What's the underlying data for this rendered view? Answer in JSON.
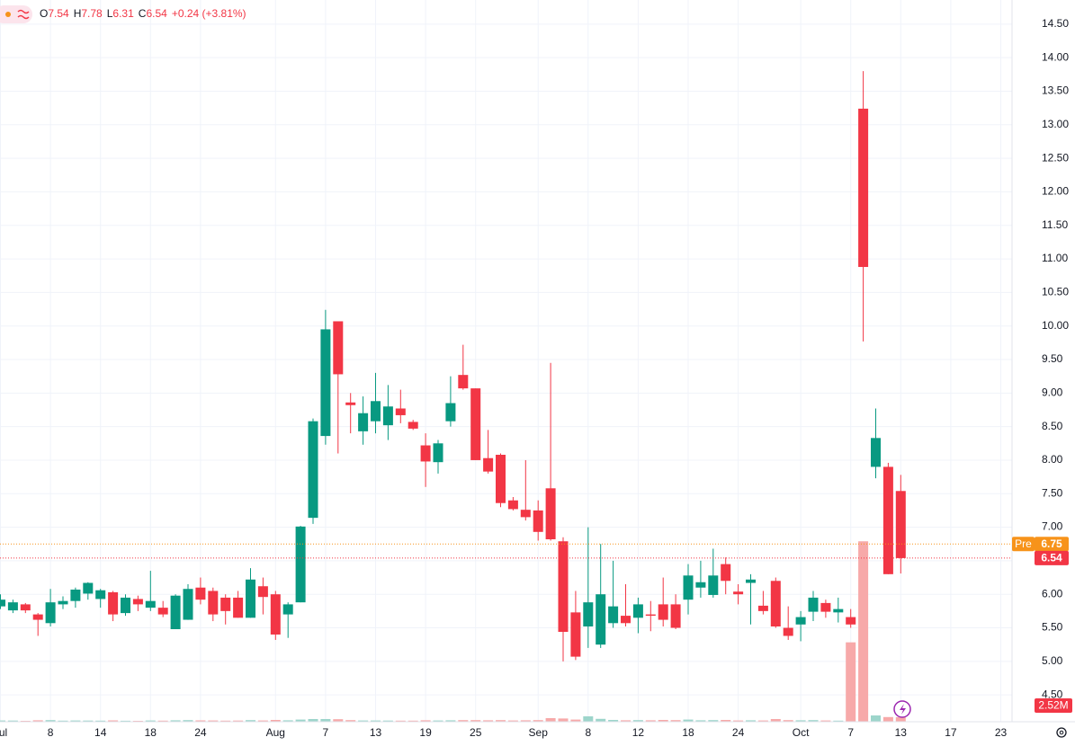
{
  "chart_data": {
    "type": "candlestick",
    "legend": {
      "items": [
        {
          "label": "O",
          "value": "7.54"
        },
        {
          "label": "H",
          "value": "7.78"
        },
        {
          "label": "L",
          "value": "6.31"
        },
        {
          "label": "C",
          "value": "6.54"
        }
      ],
      "change": "+0.24 (+3.81%)"
    },
    "categories": [
      "Jul",
      null,
      null,
      null,
      "8",
      null,
      null,
      null,
      "14",
      null,
      null,
      null,
      "18",
      null,
      null,
      null,
      "24",
      null,
      null,
      null,
      null,
      null,
      "Aug",
      null,
      null,
      null,
      "7",
      null,
      null,
      null,
      "13",
      null,
      null,
      null,
      "19",
      null,
      null,
      null,
      "25",
      null,
      null,
      null,
      null,
      "Sep",
      null,
      null,
      null,
      "8",
      null,
      null,
      null,
      "12",
      null,
      null,
      null,
      "18",
      null,
      null,
      null,
      "24",
      null,
      null,
      null,
      null,
      "Oct",
      null,
      null,
      null,
      "7",
      null,
      null,
      null,
      "13",
      null,
      null,
      null,
      "17",
      null,
      null,
      null,
      "23"
    ],
    "open": [
      5.82,
      5.76,
      5.85,
      5.7,
      5.57,
      5.85,
      5.9,
      6.01,
      5.93,
      6.03,
      5.72,
      5.93,
      5.8,
      5.8,
      5.48,
      5.62,
      6.1,
      6.05,
      5.95,
      5.95,
      5.65,
      6.12,
      6.0,
      5.7,
      5.88,
      7.14,
      8.36,
      10.07,
      8.86,
      8.43,
      8.58,
      8.52,
      8.77,
      8.57,
      8.22,
      7.97,
      8.58,
      9.27,
      9.07,
      8.03,
      8.08,
      7.4,
      7.26,
      7.25,
      7.58,
      6.79,
      5.73,
      5.52,
      5.25,
      5.57,
      5.68,
      5.65,
      5.7,
      5.85,
      5.85,
      5.92,
      6.1,
      5.99,
      6.45,
      6.04,
      6.17,
      5.83,
      6.2,
      5.5,
      5.55,
      5.74,
      5.87,
      5.73,
      5.66,
      13.24,
      7.9,
      7.9,
      7.54,
      null,
      null,
      null,
      null,
      null,
      null,
      null,
      null
    ],
    "high": [
      6,
      5.92,
      5.87,
      5.72,
      6.08,
      5.97,
      6.1,
      6.18,
      6.08,
      6.05,
      6.0,
      5.98,
      6.35,
      5.9,
      6.0,
      6.15,
      6.25,
      6.1,
      6.0,
      6.05,
      6.39,
      6.25,
      6.05,
      5.88,
      7.02,
      8.62,
      10.24,
      10.07,
      9.0,
      8.95,
      9.3,
      9.12,
      9.05,
      8.6,
      8.4,
      8.3,
      9.25,
      9.72,
      9.07,
      8.45,
      8.1,
      7.45,
      8.0,
      7.4,
      9.45,
      6.85,
      6.05,
      7.0,
      6.75,
      6.5,
      6.15,
      5.95,
      5.9,
      6.25,
      6.0,
      6.45,
      6.5,
      6.68,
      6.55,
      6.15,
      6.3,
      6.05,
      6.25,
      5.82,
      5.75,
      6.05,
      5.92,
      5.95,
      5.78,
      13.8,
      8.77,
      7.96,
      7.78,
      null,
      null,
      null,
      null,
      null,
      null,
      null,
      null
    ],
    "low": [
      5.78,
      5.72,
      5.72,
      5.38,
      5.52,
      5.78,
      5.8,
      5.92,
      5.8,
      5.6,
      5.68,
      5.75,
      5.75,
      5.66,
      5.48,
      5.62,
      5.85,
      5.6,
      5.55,
      5.65,
      5.65,
      5.7,
      5.32,
      5.35,
      5.88,
      7.05,
      8.23,
      8.1,
      8.4,
      8.23,
      8.4,
      8.3,
      8.55,
      8.45,
      7.6,
      7.8,
      8.5,
      9.05,
      8.0,
      7.8,
      7.3,
      7.25,
      7.1,
      6.8,
      6.8,
      5.0,
      5.02,
      5.2,
      5.2,
      5.5,
      5.52,
      5.42,
      5.45,
      5.52,
      5.48,
      5.7,
      5.95,
      5.95,
      6.0,
      5.85,
      5.55,
      5.7,
      5.5,
      5.32,
      5.3,
      5.6,
      5.65,
      5.58,
      5.5,
      9.77,
      7.73,
      6.3,
      6.31,
      null,
      null,
      null,
      null,
      null,
      null,
      null,
      null
    ],
    "close": [
      5.92,
      5.88,
      5.76,
      5.62,
      5.88,
      5.9,
      6.07,
      6.17,
      6.06,
      5.7,
      5.95,
      5.85,
      5.9,
      5.7,
      5.98,
      6.08,
      5.92,
      5.7,
      5.75,
      5.65,
      6.22,
      5.96,
      5.4,
      5.85,
      7.01,
      8.58,
      9.95,
      9.28,
      8.82,
      8.7,
      8.88,
      8.8,
      8.67,
      8.47,
      7.98,
      8.25,
      8.85,
      9.07,
      8.0,
      7.83,
      7.36,
      7.27,
      7.15,
      6.93,
      6.82,
      5.44,
      5.07,
      5.88,
      6.0,
      5.82,
      5.57,
      5.85,
      5.68,
      5.62,
      5.5,
      6.28,
      6.18,
      6.28,
      6.2,
      6.0,
      6.22,
      5.75,
      5.52,
      5.38,
      5.66,
      5.95,
      5.74,
      5.78,
      5.55,
      10.88,
      8.33,
      6.3,
      6.54,
      null,
      null,
      null,
      null,
      null,
      null,
      null,
      null
    ],
    "volume": [
      700000,
      650000,
      500000,
      800000,
      900000,
      600000,
      700000,
      650000,
      600000,
      750000,
      550000,
      500000,
      700000,
      600000,
      800000,
      900000,
      750000,
      700000,
      600000,
      650000,
      900000,
      700000,
      1000000,
      800000,
      1200000,
      1500000,
      1500000,
      1400000,
      900000,
      700000,
      700000,
      650000,
      600000,
      600000,
      800000,
      700000,
      800000,
      900000,
      900000,
      800000,
      900000,
      700000,
      800000,
      900000,
      2000000,
      1800000,
      1200000,
      3000000,
      1600000,
      1000000,
      800000,
      900000,
      800000,
      1000000,
      900000,
      1200000,
      800000,
      900000,
      1000000,
      700000,
      800000,
      700000,
      1500000,
      900000,
      800000,
      900000,
      700000,
      600000,
      44000000,
      100000000,
      3500000,
      2600000,
      2520000,
      null,
      null,
      null,
      null,
      null,
      null,
      null,
      null
    ],
    "volume_label": "2.52M",
    "volume_lim": [
      0,
      400000000
    ],
    "up_color": "#089981",
    "down_color": "#f23645",
    "volume_colors": {
      "up": "#9dd5cb",
      "down": "#f7a9a9"
    },
    "ylim": [
      4.1,
      14.86
    ],
    "yticks": [
      {
        "value": 4.5,
        "label": "4.50"
      },
      {
        "value": 5,
        "label": "5.00"
      },
      {
        "value": 5.5,
        "label": "5.50"
      },
      {
        "value": 6,
        "label": "6.00"
      },
      {
        "value": 6.5,
        "label": "6.50"
      },
      {
        "value": 7,
        "label": "7.00"
      },
      {
        "value": 7.5,
        "label": "7.50"
      },
      {
        "value": 8,
        "label": "8.00"
      },
      {
        "value": 8.5,
        "label": "8.50"
      },
      {
        "value": 9,
        "label": "9.00"
      },
      {
        "value": 9.5,
        "label": "9.50"
      },
      {
        "value": 10,
        "label": "10.00"
      },
      {
        "value": 10.5,
        "label": "10.50"
      },
      {
        "value": 11,
        "label": "11.00"
      },
      {
        "value": 11.5,
        "label": "11.50"
      },
      {
        "value": 12,
        "label": "12.00"
      },
      {
        "value": 12.5,
        "label": "12.50"
      },
      {
        "value": 13,
        "label": "13.00"
      },
      {
        "value": 13.5,
        "label": "13.50"
      },
      {
        "value": 14,
        "label": "14.00"
      },
      {
        "value": 14.5,
        "label": "14.50"
      }
    ],
    "price_lines": [
      {
        "label": "Pre",
        "value": 6.75,
        "color": "#f7931a"
      },
      {
        "value": 6.54,
        "color": "#f23645"
      }
    ],
    "grid": true
  }
}
